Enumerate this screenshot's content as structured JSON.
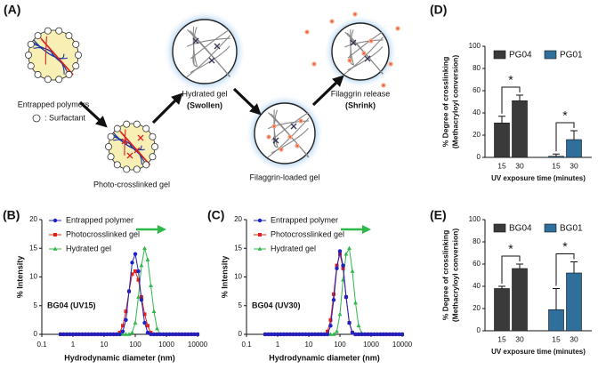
{
  "diagram": {
    "panel_label": "(A)",
    "entrapped": "Entrapped polymers",
    "surfactant": ": Surfactant",
    "photo": "Photo-crosslinked gel",
    "hydrated": "Hydrated gel",
    "swollen": "(Swollen)",
    "loaded": "Filaggrin-loaded gel",
    "release": "Filaggrin release",
    "shrink": "(Shrink)"
  },
  "chart_data": [
    {
      "type": "line",
      "panel_label": "(B)",
      "annotation": "BG04 (UV15)",
      "xlabel": "Hydrodynamic diameter (nm)",
      "ylabel": "% Intensity",
      "log_x": true,
      "xlim": [
        0.1,
        10000
      ],
      "xticks": [
        0.1,
        1,
        10,
        100,
        1000,
        10000
      ],
      "ylim": [
        0,
        20
      ],
      "yticks": [
        0,
        5,
        10,
        15,
        20
      ],
      "x": [
        0.398,
        0.501,
        0.631,
        0.794,
        1,
        1.26,
        1.58,
        2,
        2.51,
        3.16,
        3.98,
        5.01,
        6.31,
        7.94,
        10,
        12.6,
        15.8,
        20,
        25.1,
        31.6,
        39.8,
        50.1,
        63.1,
        79.4,
        100,
        126,
        158,
        200,
        251,
        316,
        398,
        501,
        631,
        794,
        1000,
        1260,
        1580,
        2000,
        2510,
        3160,
        3980,
        5010,
        6310,
        7940,
        10000
      ],
      "series": [
        {
          "name": "Entrapped polymer",
          "color": "#1c22c4",
          "marker": "circle",
          "values": [
            0,
            0,
            0,
            0,
            0,
            0,
            0,
            0,
            0,
            0,
            0,
            0,
            0,
            0,
            0,
            0,
            0,
            0,
            0,
            0,
            0.5,
            2.5,
            7.5,
            12.5,
            14,
            11,
            6,
            2,
            0.3,
            0,
            0,
            0,
            0,
            0,
            0,
            0,
            0,
            0,
            0,
            0,
            0,
            0,
            0,
            0,
            0
          ]
        },
        {
          "name": "Photocrosslinked gel",
          "color": "#e2231a",
          "marker": "square",
          "values": [
            0,
            0,
            0,
            0,
            0,
            0,
            0,
            0,
            0,
            0,
            0,
            0,
            0,
            0,
            0,
            0,
            0,
            0,
            0,
            0.3,
            1.5,
            4,
            7.5,
            10.5,
            11,
            9.5,
            6.5,
            3.5,
            1.5,
            0.3,
            0,
            0,
            0,
            0,
            0,
            0,
            0,
            0,
            0,
            0,
            0,
            0,
            0,
            0,
            0
          ]
        },
        {
          "name": "Hydrated gel",
          "color": "#2fb84a",
          "marker": "triangle",
          "values": [
            0,
            0,
            0,
            0,
            0,
            0,
            0,
            0,
            0,
            0,
            0,
            0,
            0,
            0,
            0,
            0,
            0,
            0,
            0,
            0,
            0,
            0,
            0,
            0.3,
            2,
            6.5,
            12,
            15,
            13,
            8.5,
            4,
            1,
            0,
            0,
            0,
            0,
            0,
            0,
            0,
            0,
            0,
            0,
            0,
            0,
            0
          ]
        }
      ]
    },
    {
      "type": "line",
      "panel_label": "(C)",
      "annotation": "BG04 (UV30)",
      "xlabel": "Hydrodynamic diameter (nm)",
      "ylabel": "% Intensity",
      "log_x": true,
      "xlim": [
        0.1,
        10000
      ],
      "xticks": [
        0.1,
        1,
        10,
        100,
        1000,
        10000
      ],
      "ylim": [
        0,
        20
      ],
      "yticks": [
        0,
        5,
        10,
        15,
        20
      ],
      "x": [
        0.398,
        0.501,
        0.631,
        0.794,
        1,
        1.26,
        1.58,
        2,
        2.51,
        3.16,
        3.98,
        5.01,
        6.31,
        7.94,
        10,
        12.6,
        15.8,
        20,
        25.1,
        31.6,
        39.8,
        50.1,
        63.1,
        79.4,
        100,
        126,
        158,
        200,
        251,
        316,
        398,
        501,
        631,
        794,
        1000,
        1260,
        1580,
        2000,
        2510,
        3160,
        3980,
        5010,
        6310,
        7940,
        10000
      ],
      "series": [
        {
          "name": "Entrapped polymer",
          "color": "#1c22c4",
          "marker": "circle",
          "values": [
            0,
            0,
            0,
            0,
            0,
            0,
            0,
            0,
            0,
            0,
            0,
            0,
            0,
            0,
            0,
            0,
            0,
            0,
            0,
            0,
            0,
            1.5,
            6,
            11.5,
            14.5,
            12,
            6.5,
            2,
            0.3,
            0,
            0,
            0,
            0,
            0,
            0,
            0,
            0,
            0,
            0,
            0,
            0,
            0,
            0,
            0,
            0
          ]
        },
        {
          "name": "Photocrosslinked gel",
          "color": "#e2231a",
          "marker": "square",
          "values": [
            0,
            0,
            0,
            0,
            0,
            0,
            0,
            0,
            0,
            0,
            0,
            0,
            0,
            0,
            0,
            0,
            0,
            0,
            0,
            0,
            0.5,
            2.5,
            7,
            12,
            14,
            11.5,
            6.5,
            2,
            0.3,
            0,
            0,
            0,
            0,
            0,
            0,
            0,
            0,
            0,
            0,
            0,
            0,
            0,
            0,
            0,
            0
          ]
        },
        {
          "name": "Hydrated gel",
          "color": "#2fb84a",
          "marker": "triangle",
          "values": [
            0,
            0,
            0,
            0,
            0,
            0,
            0,
            0,
            0,
            0,
            0,
            0,
            0,
            0,
            0,
            0,
            0,
            0,
            0,
            0,
            0,
            0,
            0,
            0.5,
            3.5,
            9.5,
            14,
            15,
            11,
            5.5,
            1.5,
            0.2,
            0,
            0,
            0,
            0,
            0,
            0,
            0,
            0,
            0,
            0,
            0,
            0,
            0
          ]
        }
      ]
    },
    {
      "type": "bar",
      "panel_label": "(D)",
      "xlabel": "UV exposure time (minutes)",
      "ylabel": [
        "% Degree of crosslinking",
        "(Methacryloyl conversion)"
      ],
      "categories": [
        "15",
        "30"
      ],
      "ylim": [
        0,
        100
      ],
      "yticks": [
        0,
        20,
        40,
        60,
        80,
        100
      ],
      "series": [
        {
          "name": "PG04",
          "color": "#3a3a3a",
          "values": [
            31,
            51
          ],
          "errors": [
            6,
            5
          ],
          "significance": "*"
        },
        {
          "name": "PG01",
          "color": "#2e6f9b",
          "values": [
            1,
            16
          ],
          "errors": [
            2,
            8
          ],
          "significance": "*"
        }
      ]
    },
    {
      "type": "bar",
      "panel_label": "(E)",
      "xlabel": "UV exposure time (minutes)",
      "ylabel": [
        "% Degree of crosslinking",
        "(Methacryloyl conversion)"
      ],
      "categories": [
        "15",
        "30"
      ],
      "ylim": [
        0,
        100
      ],
      "yticks": [
        0,
        20,
        40,
        60,
        80,
        100
      ],
      "series": [
        {
          "name": "BG04",
          "color": "#3a3a3a",
          "values": [
            38,
            56
          ],
          "errors": [
            2,
            4
          ],
          "significance": "*"
        },
        {
          "name": "BG01",
          "color": "#2e6f9b",
          "values": [
            19,
            52
          ],
          "errors": [
            19,
            10
          ],
          "significance": "*"
        }
      ]
    }
  ]
}
